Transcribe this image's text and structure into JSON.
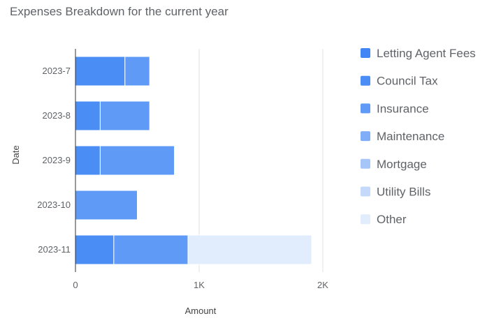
{
  "chart_data": {
    "type": "bar",
    "orientation": "horizontal",
    "stacked": true,
    "title": "Expenses Breakdown for the current year",
    "xlabel": "Amount",
    "ylabel": "Date",
    "xlim": [
      0,
      2000
    ],
    "xticks": [
      {
        "value": 0,
        "label": "0"
      },
      {
        "value": 1000,
        "label": "1K"
      },
      {
        "value": 2000,
        "label": "2K"
      }
    ],
    "grid": true,
    "legend_position": "right",
    "categories": [
      "2023-7",
      "2023-8",
      "2023-9",
      "2023-10",
      "2023-11"
    ],
    "series": [
      {
        "name": "Letting Agent Fees",
        "color": "#4285f4",
        "values": [
          0,
          0,
          0,
          0,
          0
        ]
      },
      {
        "name": "Council Tax",
        "color": "#4a8ef5",
        "values": [
          400,
          200,
          200,
          0,
          310
        ]
      },
      {
        "name": "Insurance",
        "color": "#5f9bf6",
        "values": [
          200,
          400,
          600,
          500,
          600
        ]
      },
      {
        "name": "Maintenance",
        "color": "#7fadf7",
        "values": [
          0,
          0,
          0,
          0,
          0
        ]
      },
      {
        "name": "Mortgage",
        "color": "#a6c6f9",
        "values": [
          0,
          0,
          0,
          0,
          0
        ]
      },
      {
        "name": "Utility Bills",
        "color": "#c5dafb",
        "values": [
          0,
          0,
          0,
          0,
          0
        ]
      },
      {
        "name": "Other",
        "color": "#e1ecfc",
        "values": [
          0,
          0,
          0,
          0,
          1000
        ]
      }
    ]
  }
}
